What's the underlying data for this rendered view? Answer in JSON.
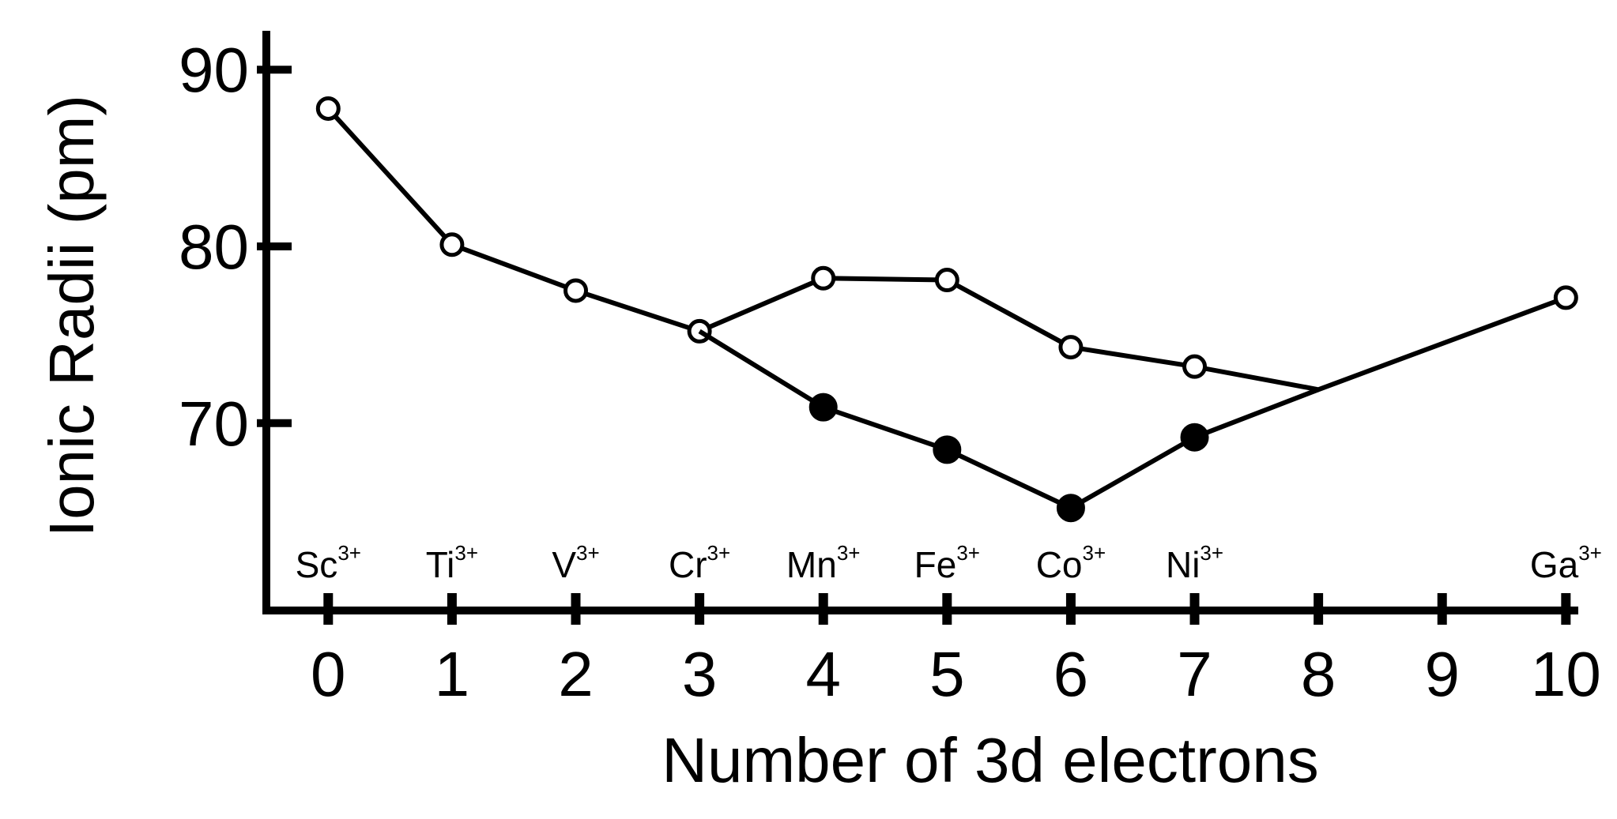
{
  "chart_data": {
    "type": "line",
    "x_label": "Number of 3d electrons",
    "y_label": "Ionic Radii (pm)",
    "xlim": [
      -0.5,
      10.1
    ],
    "ylim": [
      59.4,
      92.2
    ],
    "xticks": [
      0,
      1,
      2,
      3,
      4,
      5,
      6,
      7,
      8,
      9,
      10
    ],
    "yticks": [
      70,
      80,
      90
    ],
    "color": "#000000",
    "ion_labels": [
      {
        "x": 0,
        "symbol": "Sc",
        "charge": "3+"
      },
      {
        "x": 1,
        "symbol": "Ti",
        "charge": "3+"
      },
      {
        "x": 2,
        "symbol": "V",
        "charge": "3+"
      },
      {
        "x": 3,
        "symbol": "Cr",
        "charge": "3+"
      },
      {
        "x": 4,
        "symbol": "Mn",
        "charge": "3+"
      },
      {
        "x": 5,
        "symbol": "Fe",
        "charge": "3+"
      },
      {
        "x": 6,
        "symbol": "Co",
        "charge": "3+"
      },
      {
        "x": 7,
        "symbol": "Ni",
        "charge": "3+"
      },
      {
        "x": 10,
        "symbol": "Ga",
        "charge": "3+"
      }
    ],
    "series": [
      {
        "marker_fill": "open",
        "x": [
          0,
          1,
          2,
          3,
          4,
          5,
          6,
          7,
          8,
          10
        ],
        "values": [
          87.8,
          80.1,
          77.5,
          75.2,
          78.2,
          78.1,
          74.3,
          73.2,
          71.9,
          77.1
        ],
        "markers": [
          true,
          true,
          true,
          true,
          true,
          true,
          true,
          true,
          false,
          true
        ]
      },
      {
        "marker_fill": "filled",
        "x": [
          3,
          4,
          5,
          6,
          7,
          8
        ],
        "values": [
          75.2,
          70.9,
          68.5,
          65.2,
          69.2,
          71.9
        ],
        "markers": [
          false,
          true,
          true,
          true,
          true,
          false
        ]
      }
    ]
  }
}
